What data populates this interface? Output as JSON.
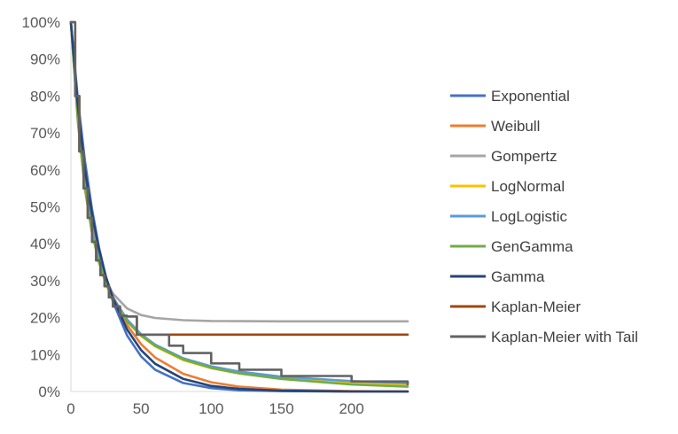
{
  "chart_data": {
    "type": "line",
    "xlim": [
      0,
      240
    ],
    "ylim": [
      0,
      100
    ],
    "x_ticks": [
      0,
      50,
      100,
      150,
      200
    ],
    "y_ticks": [
      0,
      10,
      20,
      30,
      40,
      50,
      60,
      70,
      80,
      90,
      100
    ],
    "y_tick_labels": [
      "0%",
      "10%",
      "20%",
      "30%",
      "40%",
      "50%",
      "60%",
      "70%",
      "80%",
      "90%",
      "100%"
    ],
    "grid": false,
    "legend_position": "right",
    "series": [
      {
        "name": "Exponential",
        "color": "#4472c4",
        "x": [
          0,
          5,
          10,
          15,
          20,
          25,
          30,
          40,
          50,
          60,
          80,
          100,
          120,
          150,
          200,
          240
        ],
        "y": [
          100,
          79,
          62.5,
          49.4,
          39,
          30.8,
          24.3,
          15.2,
          9.5,
          5.9,
          2.3,
          0.9,
          0.3,
          0.1,
          0,
          0
        ]
      },
      {
        "name": "Weibull",
        "color": "#ed7d31",
        "x": [
          0,
          5,
          10,
          15,
          20,
          25,
          30,
          40,
          50,
          60,
          80,
          100,
          120,
          150,
          200,
          240
        ],
        "y": [
          100,
          76,
          58,
          46,
          37,
          30.5,
          25.5,
          18,
          12.8,
          9.2,
          4.8,
          2.5,
          1.3,
          0.5,
          0.1,
          0
        ]
      },
      {
        "name": "Gompertz",
        "color": "#a5a5a5",
        "x": [
          0,
          5,
          10,
          15,
          20,
          25,
          30,
          40,
          50,
          60,
          80,
          100,
          120,
          150,
          200,
          240
        ],
        "y": [
          100,
          73,
          55,
          43,
          35,
          30,
          26.5,
          22.5,
          20.7,
          19.9,
          19.3,
          19.1,
          19.05,
          19,
          19,
          19
        ]
      },
      {
        "name": "LogNormal",
        "color": "#ffc000",
        "x": [
          0,
          5,
          10,
          15,
          20,
          25,
          30,
          40,
          50,
          60,
          80,
          100,
          120,
          150,
          200,
          240
        ],
        "y": [
          100,
          74,
          55,
          43,
          35,
          29,
          25,
          19,
          15,
          12.2,
          8.5,
          6.3,
          4.9,
          3.5,
          2.2,
          1.6
        ]
      },
      {
        "name": "LogLogistic",
        "color": "#5b9bd5",
        "x": [
          0,
          5,
          10,
          15,
          20,
          25,
          30,
          40,
          50,
          60,
          80,
          100,
          120,
          150,
          200,
          240
        ],
        "y": [
          100,
          74,
          56,
          44,
          36,
          30,
          25.5,
          19.5,
          15.5,
          12.7,
          9,
          6.8,
          5.4,
          4,
          2.8,
          2.2
        ]
      },
      {
        "name": "GenGamma",
        "color": "#70ad47",
        "x": [
          0,
          5,
          10,
          15,
          20,
          25,
          30,
          40,
          50,
          60,
          80,
          100,
          120,
          150,
          200,
          240
        ],
        "y": [
          100,
          73,
          55,
          43,
          35,
          29.3,
          25,
          19,
          15.2,
          12.4,
          8.7,
          6.4,
          4.9,
          3.4,
          1.9,
          1.3
        ]
      },
      {
        "name": "Gamma",
        "color": "#264478",
        "x": [
          0,
          5,
          10,
          15,
          20,
          25,
          30,
          40,
          50,
          60,
          80,
          100,
          120,
          150,
          200,
          240
        ],
        "y": [
          100,
          77,
          60,
          48,
          38.5,
          31,
          25.3,
          16.8,
          11.2,
          7.5,
          3.4,
          1.5,
          0.7,
          0.2,
          0,
          0
        ]
      },
      {
        "name": "Kaplan-Meier",
        "color": "#9e480e",
        "step": true,
        "x": [
          0,
          3,
          6,
          9,
          12,
          15,
          18,
          21,
          24,
          27,
          30,
          35,
          40,
          47,
          240
        ],
        "y": [
          100,
          80,
          65,
          55,
          47,
          40.5,
          35.5,
          31.5,
          28.5,
          25.5,
          23,
          20.5,
          20.3,
          15.4,
          15.4
        ]
      },
      {
        "name": "Kaplan-Meier with Tail",
        "color": "#636363",
        "step": true,
        "x": [
          0,
          3,
          6,
          9,
          12,
          15,
          18,
          21,
          24,
          27,
          30,
          35,
          40,
          47,
          60,
          70,
          80,
          100,
          120,
          150,
          200,
          240
        ],
        "y": [
          100,
          80,
          65,
          55,
          47,
          40.5,
          35.5,
          31.5,
          28.5,
          25.5,
          23,
          20.5,
          20.3,
          15.4,
          15.4,
          12.4,
          10.4,
          7.6,
          5.9,
          4.2,
          2.7,
          2
        ]
      }
    ]
  }
}
